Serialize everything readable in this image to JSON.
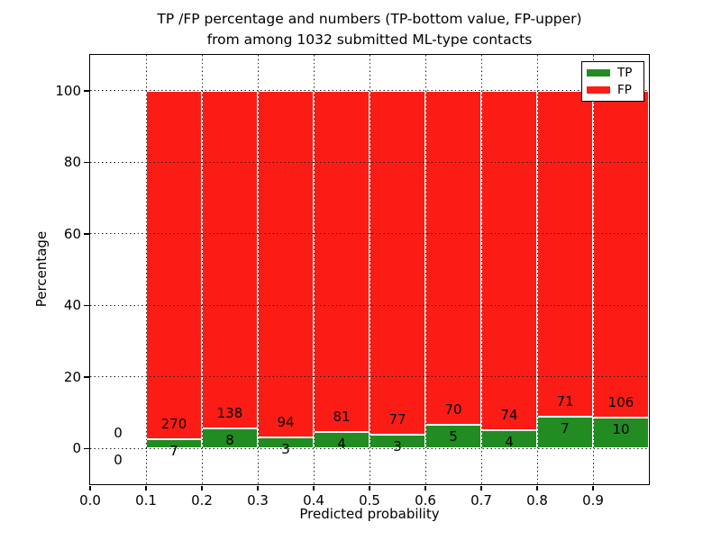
{
  "title": {
    "line1": "TP /FP percentage and numbers (TP-bottom value, FP-upper)",
    "line2": "from among 1032 submitted ML-type contacts"
  },
  "chart_data": {
    "type": "bar",
    "stacked": true,
    "normalized_to_percent": true,
    "title": "TP /FP percentage and numbers (TP-bottom value, FP-upper) from among 1032 submitted ML-type contacts",
    "xlabel": "Predicted probability",
    "ylabel": "Percentage",
    "xlim": [
      0.0,
      1.0
    ],
    "ylim": [
      -10,
      110
    ],
    "x_tick_labels": [
      "0.0",
      "0.1",
      "0.2",
      "0.3",
      "0.4",
      "0.5",
      "0.6",
      "0.7",
      "0.8",
      "0.9"
    ],
    "y_tick_values": [
      0,
      20,
      40,
      60,
      80,
      100
    ],
    "y_tick_labels": [
      "0",
      "20",
      "40",
      "60",
      "80",
      "100"
    ],
    "grid": "dotted both axes",
    "legend_position": "upper right",
    "total_contacts": 1032,
    "series": [
      {
        "name": "TP",
        "color": "#228B22"
      },
      {
        "name": "FP",
        "color": "#FB1D15"
      }
    ],
    "bins": [
      {
        "x_start": 0.0,
        "x_end": 0.1,
        "tp_count": 0,
        "fp_count": 0
      },
      {
        "x_start": 0.1,
        "x_end": 0.2,
        "tp_count": 7,
        "fp_count": 270
      },
      {
        "x_start": 0.2,
        "x_end": 0.3,
        "tp_count": 8,
        "fp_count": 138
      },
      {
        "x_start": 0.3,
        "x_end": 0.4,
        "tp_count": 3,
        "fp_count": 94
      },
      {
        "x_start": 0.4,
        "x_end": 0.5,
        "tp_count": 4,
        "fp_count": 81
      },
      {
        "x_start": 0.5,
        "x_end": 0.6,
        "tp_count": 3,
        "fp_count": 77
      },
      {
        "x_start": 0.6,
        "x_end": 0.7,
        "tp_count": 5,
        "fp_count": 70
      },
      {
        "x_start": 0.7,
        "x_end": 0.8,
        "tp_count": 4,
        "fp_count": 74
      },
      {
        "x_start": 0.8,
        "x_end": 0.9,
        "tp_count": 7,
        "fp_count": 71
      },
      {
        "x_start": 0.9,
        "x_end": 1.0,
        "tp_count": 10,
        "fp_count": 106
      }
    ]
  }
}
